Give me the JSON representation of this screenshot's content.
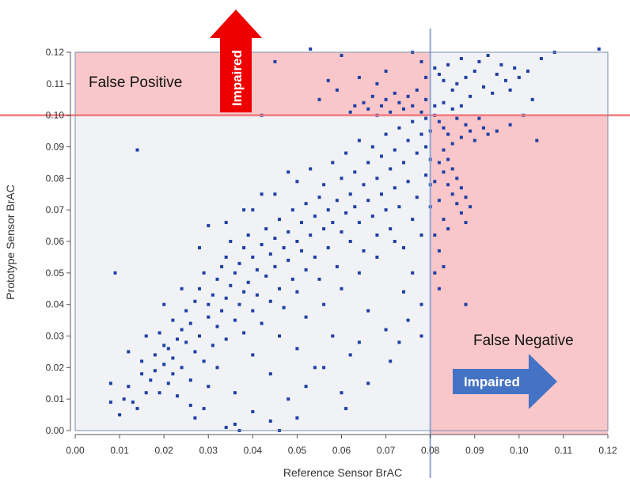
{
  "chart_data": {
    "type": "scatter",
    "title": "",
    "xlabel": "Reference Sensor BrAC",
    "ylabel": "Prototype Sensor BrAC",
    "xlim": [
      0.0,
      0.12
    ],
    "ylim": [
      0.0,
      0.12
    ],
    "x_ticks": [
      "0.00",
      "0.01",
      "0.02",
      "0.03",
      "0.04",
      "0.05",
      "0.06",
      "0.07",
      "0.08",
      "0.09",
      "0.10",
      "0.11",
      "0.12"
    ],
    "y_ticks": [
      "0.00",
      "0.01",
      "0.02",
      "0.03",
      "0.04",
      "0.05",
      "0.06",
      "0.07",
      "0.08",
      "0.09",
      "0.10",
      "0.11",
      "0.12"
    ],
    "grid": false,
    "thresholds": {
      "x": 0.08,
      "y": 0.1
    },
    "regions": {
      "false_positive": "False Positive",
      "false_negative": "False Negative"
    },
    "arrows": {
      "up_label": "Impaired",
      "right_label": "Impaired"
    },
    "series": [
      {
        "values_note": "",
        "points": [
          [
            0.008,
            0.009
          ],
          [
            0.008,
            0.015
          ],
          [
            0.009,
            0.05
          ],
          [
            0.01,
            0.005
          ],
          [
            0.011,
            0.01
          ],
          [
            0.012,
            0.014
          ],
          [
            0.012,
            0.025
          ],
          [
            0.013,
            0.009
          ],
          [
            0.014,
            0.007
          ],
          [
            0.014,
            0.089
          ],
          [
            0.015,
            0.018
          ],
          [
            0.015,
            0.022
          ],
          [
            0.016,
            0.012
          ],
          [
            0.016,
            0.03
          ],
          [
            0.017,
            0.016
          ],
          [
            0.018,
            0.019
          ],
          [
            0.018,
            0.024
          ],
          [
            0.019,
            0.031
          ],
          [
            0.019,
            0.012
          ],
          [
            0.02,
            0.021
          ],
          [
            0.02,
            0.027
          ],
          [
            0.021,
            0.026
          ],
          [
            0.021,
            0.015
          ],
          [
            0.022,
            0.023
          ],
          [
            0.022,
            0.035
          ],
          [
            0.023,
            0.029
          ],
          [
            0.023,
            0.011
          ],
          [
            0.024,
            0.032
          ],
          [
            0.024,
            0.02
          ],
          [
            0.025,
            0.038
          ],
          [
            0.025,
            0.028
          ],
          [
            0.026,
            0.016
          ],
          [
            0.026,
            0.034
          ],
          [
            0.027,
            0.041
          ],
          [
            0.027,
            0.025
          ],
          [
            0.028,
            0.03
          ],
          [
            0.028,
            0.045
          ],
          [
            0.029,
            0.022
          ],
          [
            0.029,
            0.05
          ],
          [
            0.03,
            0.036
          ],
          [
            0.03,
            0.04
          ],
          [
            0.03,
            0.065
          ],
          [
            0.031,
            0.027
          ],
          [
            0.031,
            0.043
          ],
          [
            0.032,
            0.048
          ],
          [
            0.032,
            0.033
          ],
          [
            0.033,
            0.052
          ],
          [
            0.033,
            0.038
          ],
          [
            0.034,
            0.055
          ],
          [
            0.034,
            0.029
          ],
          [
            0.034,
            0.042
          ],
          [
            0.035,
            0.046
          ],
          [
            0.035,
            0.06
          ],
          [
            0.036,
            0.035
          ],
          [
            0.036,
            0.05
          ],
          [
            0.037,
            0.053
          ],
          [
            0.037,
            0.04
          ],
          [
            0.038,
            0.058
          ],
          [
            0.038,
            0.044
          ],
          [
            0.038,
            0.031
          ],
          [
            0.039,
            0.062
          ],
          [
            0.039,
            0.047
          ],
          [
            0.04,
            0.055
          ],
          [
            0.04,
            0.038
          ],
          [
            0.04,
            0.07
          ],
          [
            0.041,
            0.051
          ],
          [
            0.041,
            0.043
          ],
          [
            0.042,
            0.059
          ],
          [
            0.042,
            0.034
          ],
          [
            0.043,
            0.064
          ],
          [
            0.043,
            0.049
          ],
          [
            0.044,
            0.056
          ],
          [
            0.044,
            0.041
          ],
          [
            0.045,
            0.061
          ],
          [
            0.045,
            0.052
          ],
          [
            0.045,
            0.075
          ],
          [
            0.046,
            0.045
          ],
          [
            0.046,
            0.067
          ],
          [
            0.047,
            0.058
          ],
          [
            0.047,
            0.039
          ],
          [
            0.048,
            0.063
          ],
          [
            0.048,
            0.054
          ],
          [
            0.049,
            0.07
          ],
          [
            0.049,
            0.048
          ],
          [
            0.05,
            0.06
          ],
          [
            0.05,
            0.079
          ],
          [
            0.05,
            0.044
          ],
          [
            0.051,
            0.066
          ],
          [
            0.051,
            0.057
          ],
          [
            0.052,
            0.072
          ],
          [
            0.052,
            0.051
          ],
          [
            0.053,
            0.062
          ],
          [
            0.053,
            0.083
          ],
          [
            0.054,
            0.068
          ],
          [
            0.054,
            0.055
          ],
          [
            0.055,
            0.074
          ],
          [
            0.055,
            0.048
          ],
          [
            0.056,
            0.064
          ],
          [
            0.056,
            0.078
          ],
          [
            0.057,
            0.07
          ],
          [
            0.057,
            0.058
          ],
          [
            0.058,
            0.085
          ],
          [
            0.058,
            0.066
          ],
          [
            0.059,
            0.073
          ],
          [
            0.059,
            0.052
          ],
          [
            0.06,
            0.08
          ],
          [
            0.06,
            0.063
          ],
          [
            0.061,
            0.069
          ],
          [
            0.061,
            0.088
          ],
          [
            0.062,
            0.075
          ],
          [
            0.062,
            0.06
          ],
          [
            0.063,
            0.082
          ],
          [
            0.063,
            0.071
          ],
          [
            0.064,
            0.066
          ],
          [
            0.064,
            0.092
          ],
          [
            0.065,
            0.078
          ],
          [
            0.065,
            0.057
          ],
          [
            0.066,
            0.085
          ],
          [
            0.066,
            0.073
          ],
          [
            0.067,
            0.068
          ],
          [
            0.067,
            0.09
          ],
          [
            0.068,
            0.08
          ],
          [
            0.068,
            0.062
          ],
          [
            0.069,
            0.087
          ],
          [
            0.069,
            0.075
          ],
          [
            0.07,
            0.094
          ],
          [
            0.07,
            0.07
          ],
          [
            0.071,
            0.083
          ],
          [
            0.071,
            0.064
          ],
          [
            0.072,
            0.089
          ],
          [
            0.072,
            0.077
          ],
          [
            0.073,
            0.096
          ],
          [
            0.073,
            0.071
          ],
          [
            0.074,
            0.085
          ],
          [
            0.074,
            0.058
          ],
          [
            0.075,
            0.092
          ],
          [
            0.075,
            0.079
          ],
          [
            0.076,
            0.098
          ],
          [
            0.076,
            0.067
          ],
          [
            0.077,
            0.088
          ],
          [
            0.077,
            0.074
          ],
          [
            0.078,
            0.094
          ],
          [
            0.078,
            0.062
          ],
          [
            0.079,
            0.09
          ],
          [
            0.079,
            0.081
          ],
          [
            0.079,
            0.099
          ],
          [
            0.08,
            0.086
          ],
          [
            0.08,
            0.071
          ],
          [
            0.08,
            0.095
          ],
          [
            0.08,
            0.078
          ],
          [
            0.02,
            0.04
          ],
          [
            0.022,
            0.018
          ],
          [
            0.024,
            0.045
          ],
          [
            0.026,
            0.008
          ],
          [
            0.028,
            0.058
          ],
          [
            0.03,
            0.014
          ],
          [
            0.032,
            0.02
          ],
          [
            0.034,
            0.066
          ],
          [
            0.036,
            0.012
          ],
          [
            0.038,
            0.07
          ],
          [
            0.04,
            0.024
          ],
          [
            0.042,
            0.075
          ],
          [
            0.044,
            0.018
          ],
          [
            0.046,
            0.03
          ],
          [
            0.048,
            0.082
          ],
          [
            0.05,
            0.026
          ],
          [
            0.052,
            0.036
          ],
          [
            0.054,
            0.02
          ],
          [
            0.056,
            0.04
          ],
          [
            0.058,
            0.03
          ],
          [
            0.06,
            0.045
          ],
          [
            0.062,
            0.024
          ],
          [
            0.064,
            0.05
          ],
          [
            0.066,
            0.038
          ],
          [
            0.068,
            0.055
          ],
          [
            0.07,
            0.032
          ],
          [
            0.072,
            0.06
          ],
          [
            0.074,
            0.044
          ],
          [
            0.076,
            0.05
          ],
          [
            0.078,
            0.04
          ],
          [
            0.036,
            0.002
          ],
          [
            0.04,
            0.006
          ],
          [
            0.044,
            0.003
          ],
          [
            0.048,
            0.01
          ],
          [
            0.052,
            0.014
          ],
          [
            0.056,
            0.02
          ],
          [
            0.06,
            0.012
          ],
          [
            0.061,
            0.007
          ],
          [
            0.064,
            0.028
          ],
          [
            0.027,
            0.004
          ],
          [
            0.029,
            0.007
          ],
          [
            0.034,
            0.001
          ],
          [
            0.037,
            0.0
          ],
          [
            0.046,
            0.0
          ],
          [
            0.05,
            0.004
          ],
          [
            0.066,
            0.015
          ],
          [
            0.071,
            0.022
          ],
          [
            0.073,
            0.028
          ],
          [
            0.075,
            0.035
          ],
          [
            0.078,
            0.03
          ],
          [
            0.062,
            0.101
          ],
          [
            0.063,
            0.103
          ],
          [
            0.065,
            0.104
          ],
          [
            0.066,
            0.102
          ],
          [
            0.067,
            0.106
          ],
          [
            0.068,
            0.1
          ],
          [
            0.069,
            0.103
          ],
          [
            0.07,
            0.105
          ],
          [
            0.071,
            0.101
          ],
          [
            0.072,
            0.107
          ],
          [
            0.073,
            0.104
          ],
          [
            0.074,
            0.102
          ],
          [
            0.075,
            0.106
          ],
          [
            0.076,
            0.103
          ],
          [
            0.077,
            0.108
          ],
          [
            0.078,
            0.101
          ],
          [
            0.079,
            0.105
          ],
          [
            0.057,
            0.111
          ],
          [
            0.059,
            0.108
          ],
          [
            0.053,
            0.121
          ],
          [
            0.06,
            0.119
          ],
          [
            0.045,
            0.117
          ],
          [
            0.055,
            0.105
          ],
          [
            0.076,
            0.12
          ],
          [
            0.07,
            0.114
          ],
          [
            0.042,
            0.1
          ],
          [
            0.079,
            0.112
          ],
          [
            0.078,
            0.117
          ],
          [
            0.064,
            0.112
          ],
          [
            0.068,
            0.11
          ],
          [
            0.081,
            0.1
          ],
          [
            0.082,
            0.098
          ],
          [
            0.083,
            0.096
          ],
          [
            0.084,
            0.094
          ],
          [
            0.085,
            0.091
          ],
          [
            0.086,
            0.099
          ],
          [
            0.087,
            0.093
          ],
          [
            0.088,
            0.097
          ],
          [
            0.089,
            0.095
          ],
          [
            0.09,
            0.092
          ],
          [
            0.091,
            0.099
          ],
          [
            0.092,
            0.096
          ],
          [
            0.093,
            0.094
          ],
          [
            0.083,
            0.089
          ],
          [
            0.084,
            0.086
          ],
          [
            0.085,
            0.083
          ],
          [
            0.086,
            0.08
          ],
          [
            0.087,
            0.077
          ],
          [
            0.088,
            0.074
          ],
          [
            0.089,
            0.071
          ],
          [
            0.082,
            0.085
          ],
          [
            0.083,
            0.082
          ],
          [
            0.084,
            0.078
          ],
          [
            0.085,
            0.075
          ],
          [
            0.086,
            0.072
          ],
          [
            0.087,
            0.069
          ],
          [
            0.088,
            0.066
          ],
          [
            0.081,
            0.079
          ],
          [
            0.082,
            0.073
          ],
          [
            0.083,
            0.067
          ],
          [
            0.084,
            0.064
          ],
          [
            0.081,
            0.062
          ],
          [
            0.082,
            0.057
          ],
          [
            0.083,
            0.052
          ],
          [
            0.081,
            0.05
          ],
          [
            0.082,
            0.045
          ],
          [
            0.088,
            0.04
          ],
          [
            0.095,
            0.095
          ],
          [
            0.098,
            0.097
          ],
          [
            0.104,
            0.092
          ],
          [
            0.101,
            0.1
          ],
          [
            0.081,
            0.115
          ],
          [
            0.082,
            0.113
          ],
          [
            0.083,
            0.111
          ],
          [
            0.084,
            0.116
          ],
          [
            0.085,
            0.108
          ],
          [
            0.086,
            0.11
          ],
          [
            0.087,
            0.118
          ],
          [
            0.088,
            0.112
          ],
          [
            0.089,
            0.106
          ],
          [
            0.09,
            0.114
          ],
          [
            0.091,
            0.117
          ],
          [
            0.092,
            0.109
          ],
          [
            0.093,
            0.119
          ],
          [
            0.094,
            0.107
          ],
          [
            0.095,
            0.113
          ],
          [
            0.096,
            0.116
          ],
          [
            0.097,
            0.111
          ],
          [
            0.098,
            0.108
          ],
          [
            0.099,
            0.115
          ],
          [
            0.1,
            0.112
          ],
          [
            0.102,
            0.114
          ],
          [
            0.103,
            0.105
          ],
          [
            0.105,
            0.118
          ],
          [
            0.108,
            0.12
          ],
          [
            0.118,
            0.121
          ],
          [
            0.081,
            0.103
          ],
          [
            0.083,
            0.104
          ],
          [
            0.085,
            0.102
          ],
          [
            0.087,
            0.103
          ]
        ]
      }
    ]
  }
}
